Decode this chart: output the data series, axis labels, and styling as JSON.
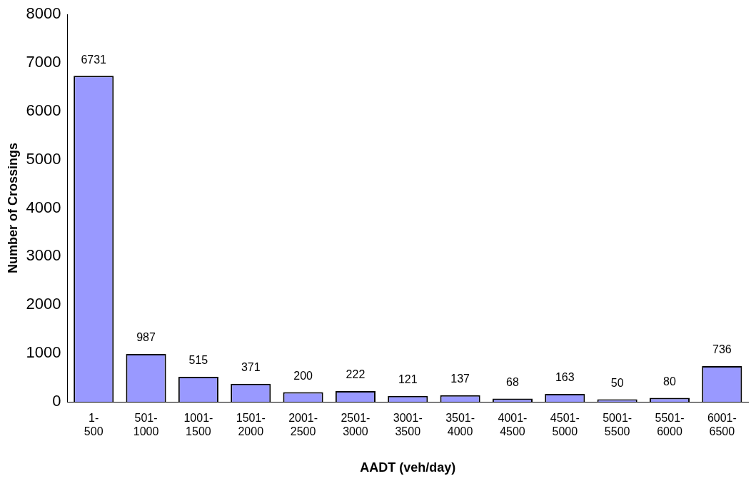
{
  "chart_data": {
    "type": "bar",
    "xlabel": "AADT (veh/day)",
    "ylabel": "Number of Crossings",
    "categories": [
      "1-500",
      "501-1000",
      "1001-1500",
      "1501-2000",
      "2001-2500",
      "2501-3000",
      "3001-3500",
      "3501-4000",
      "4001-4500",
      "4501-5000",
      "5001-5500",
      "5501-6000",
      "6001-6500"
    ],
    "values": [
      6731,
      987,
      515,
      371,
      200,
      222,
      121,
      137,
      68,
      163,
      50,
      80,
      736
    ],
    "color": "#9999ff",
    "ylim": [
      0,
      8000
    ],
    "yticks": [
      0,
      1000,
      2000,
      3000,
      4000,
      5000,
      6000,
      7000,
      8000
    ],
    "grid": false,
    "legend": false,
    "data_labels": true
  }
}
